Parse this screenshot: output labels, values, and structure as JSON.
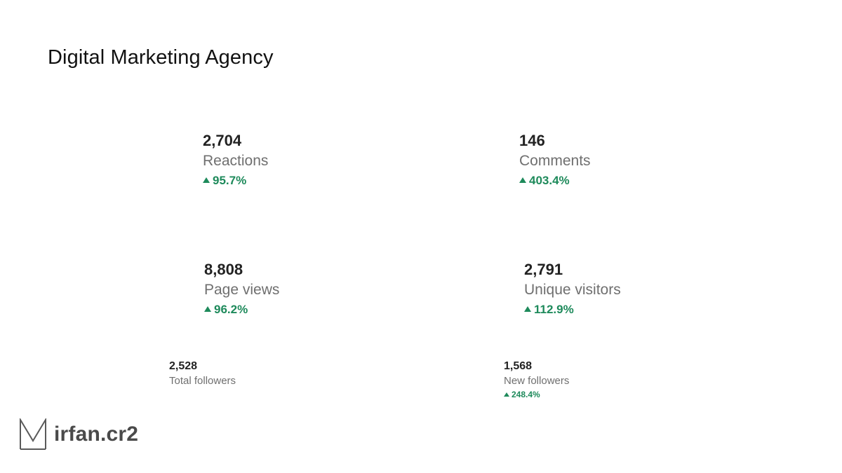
{
  "header": {
    "title": "Digital Marketing Agency"
  },
  "colors": {
    "positive": "#1e8a5b",
    "value": "#222222",
    "label": "#6f6f6f",
    "brand": "#4a4a4a"
  },
  "metrics": [
    {
      "value": "2,704",
      "label": "Reactions",
      "change": "95.7%",
      "trend": "up"
    },
    {
      "value": "146",
      "label": "Comments",
      "change": "403.4%",
      "trend": "up"
    },
    {
      "value": "8,808",
      "label": "Page views",
      "change": "96.2%",
      "trend": "up"
    },
    {
      "value": "2,791",
      "label": "Unique visitors",
      "change": "112.9%",
      "trend": "up"
    }
  ],
  "followers": [
    {
      "value": "2,528",
      "label": "Total followers"
    },
    {
      "value": "1,568",
      "label": "New followers",
      "change": "248.4%",
      "trend": "up"
    }
  ],
  "brand": {
    "name": "irfan.cr2",
    "logo_icon": "m-logo-icon"
  }
}
